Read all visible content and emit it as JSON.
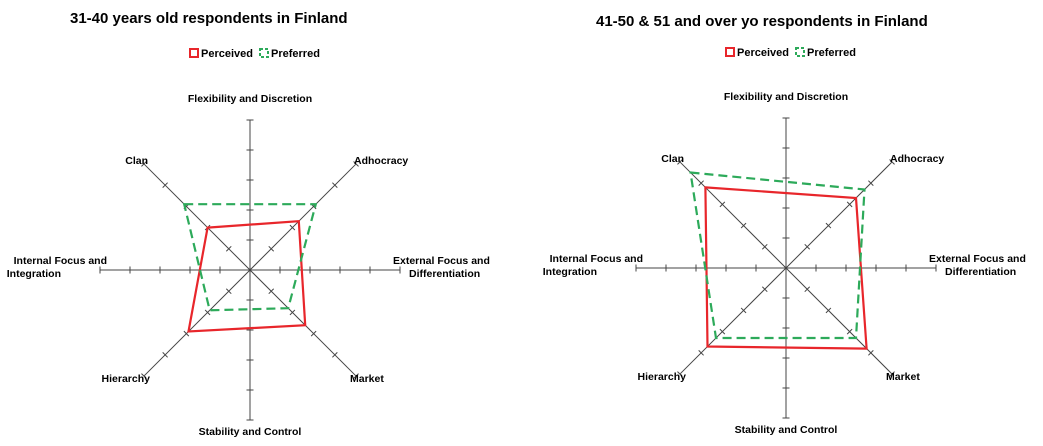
{
  "chart_data": [
    {
      "type": "radar",
      "title": "31-40 years old respondents in Finland",
      "axes": [
        "Flexibility and Discretion",
        "Adhocracy",
        "External Focus and Differentiation",
        "Market",
        "Stability and Control",
        "Hierarchy",
        "Internal Focus and Integration",
        "Clan"
      ],
      "quadrants": [
        "Clan",
        "Adhocracy",
        "Market",
        "Hierarchy"
      ],
      "rlim": [
        0,
        50
      ],
      "series": [
        {
          "name": "Perceived",
          "color": "#e8262b",
          "style": "solid",
          "values": {
            "Clan": 20,
            "Adhocracy": 23,
            "Market": 26,
            "Hierarchy": 29
          }
        },
        {
          "name": "Preferred",
          "color": "#2daa5a",
          "style": "dashed",
          "values": {
            "Clan": 31,
            "Adhocracy": 31,
            "Market": 18,
            "Hierarchy": 19
          }
        }
      ],
      "legend": "top-center"
    },
    {
      "type": "radar",
      "title": "41-50 & 51 and over yo respondents in Finland",
      "axes": [
        "Flexibility and Discretion",
        "Adhocracy",
        "External Focus and Differentiation",
        "Market",
        "Stability and Control",
        "Hierarchy",
        "Internal Focus and Integration",
        "Clan"
      ],
      "quadrants": [
        "Clan",
        "Adhocracy",
        "Market",
        "Hierarchy"
      ],
      "rlim": [
        0,
        50
      ],
      "series": [
        {
          "name": "Perceived",
          "color": "#e8262b",
          "style": "solid",
          "values": {
            "Clan": 38,
            "Adhocracy": 33,
            "Market": 38,
            "Hierarchy": 37
          }
        },
        {
          "name": "Preferred",
          "color": "#2daa5a",
          "style": "dashed",
          "values": {
            "Clan": 45,
            "Adhocracy": 37,
            "Market": 33,
            "Hierarchy": 33
          }
        }
      ],
      "legend": "top-center"
    }
  ]
}
